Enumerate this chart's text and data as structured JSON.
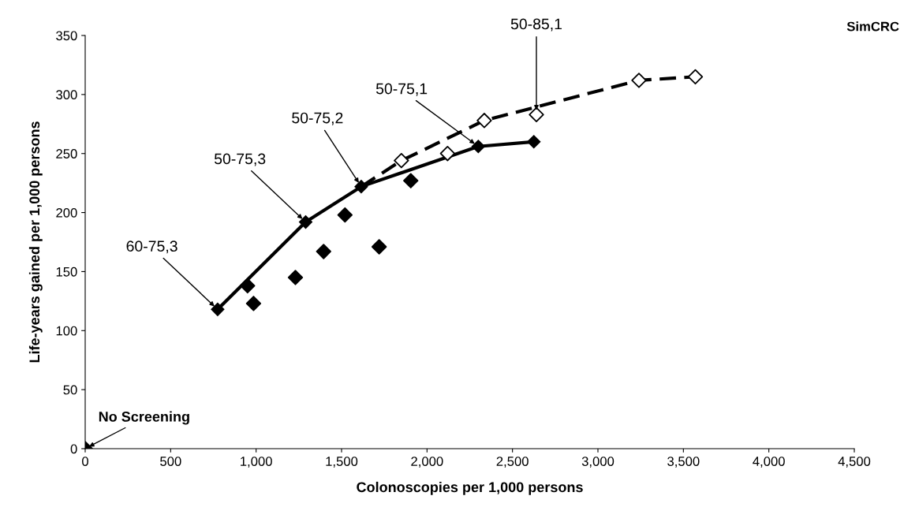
{
  "chart_data": {
    "type": "line",
    "title": "SimCRC",
    "xlabel": "Colonoscopies per 1,000 persons",
    "ylabel": "Life-years gained per 1,000 persons",
    "xlim": [
      0,
      4500
    ],
    "ylim": [
      0,
      350
    ],
    "xticks": [
      0,
      500,
      {
        "value": 1000,
        "label": "1,000"
      },
      {
        "value": 1500,
        "label": "1,500"
      },
      {
        "value": 2000,
        "label": "2,000"
      },
      {
        "value": 2500,
        "label": "2,500"
      },
      {
        "value": 3000,
        "label": "3,000"
      },
      {
        "value": 3500,
        "label": "3,500"
      },
      {
        "value": 4000,
        "label": "4,000"
      },
      {
        "value": 4500,
        "label": "4,500"
      }
    ],
    "yticks": [
      0,
      50,
      100,
      150,
      200,
      250,
      300,
      350
    ],
    "grid": false,
    "legend": false,
    "series": [
      {
        "color": "#000000",
        "line_style": "solid",
        "marker": "diamond",
        "x": [
          775,
          1290,
          1615,
          2300,
          2625
        ],
        "values": [
          118,
          192,
          222,
          256,
          260
        ]
      },
      {
        "color": "#000000",
        "line_style": "dashed",
        "marker": "none",
        "x": [
          1615,
          1850,
          2335,
          3240,
          3570
        ],
        "values": [
          222,
          244,
          278,
          312,
          315
        ]
      },
      {
        "type": "scatter",
        "color": "#000000",
        "marker": "diamond",
        "x": [
          0,
          950,
          985,
          1230,
          1395,
          1520,
          1720,
          1905
        ],
        "values": [
          0,
          138,
          123,
          145,
          167,
          198,
          171,
          227
        ]
      },
      {
        "type": "scatter",
        "color": "#ffffff",
        "marker": "diamond",
        "x": [
          1850,
          2120,
          2335,
          2640,
          3240,
          3570
        ],
        "values": [
          244,
          250,
          278,
          283,
          312,
          315
        ]
      }
    ],
    "annotations": [
      {
        "text": "60-75,3",
        "x": 775,
        "y": 118
      },
      {
        "text": "50-75,3",
        "x": 1290,
        "y": 192
      },
      {
        "text": "50-75,2",
        "x": 1615,
        "y": 222
      },
      {
        "text": "50-75,1",
        "x": 2300,
        "y": 256
      },
      {
        "text": "50-85,1",
        "x": 2640,
        "y": 283
      },
      {
        "text": "No Screening",
        "x": 0,
        "y": 0
      }
    ]
  }
}
